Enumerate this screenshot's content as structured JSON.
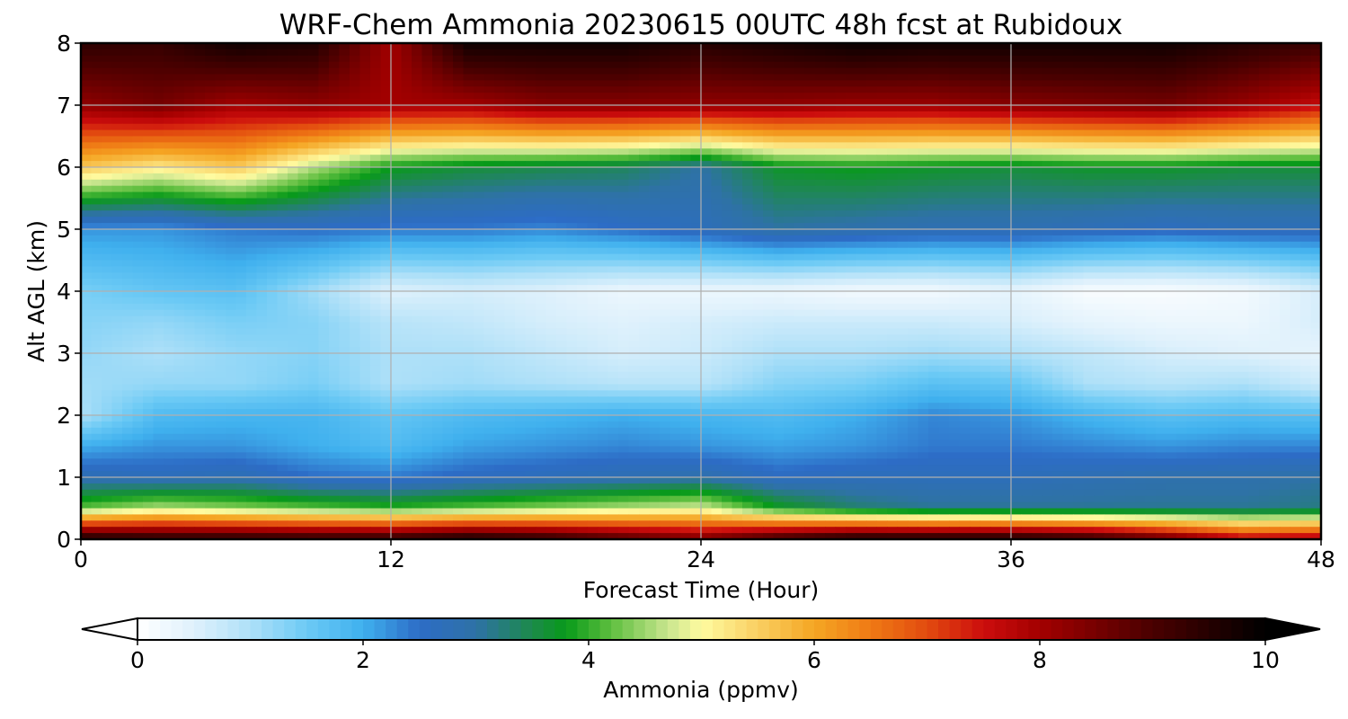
{
  "chart_data": {
    "type": "heatmap",
    "title": "WRF-Chem Ammonia  20230615 00UTC 48h fcst at Rubidoux",
    "xlabel": "Forecast Time (Hour)",
    "ylabel": "Alt AGL (km)",
    "xlim": [
      0,
      48
    ],
    "ylim": [
      0,
      8
    ],
    "x_ticks": [
      "0",
      "12",
      "24",
      "36",
      "48"
    ],
    "y_ticks": [
      "0",
      "1",
      "2",
      "3",
      "4",
      "5",
      "6",
      "7",
      "8"
    ],
    "grid": true,
    "colorbar": {
      "label": "Ammonia  (ppmv)",
      "range": [
        0,
        10
      ],
      "ticks": [
        "0",
        "2",
        "4",
        "6",
        "8",
        "10"
      ],
      "extend": "both",
      "stops": [
        {
          "v": 0.0,
          "c": "#ffffff"
        },
        {
          "v": 0.5,
          "c": "#dff1fc"
        },
        {
          "v": 1.0,
          "c": "#aee0f8"
        },
        {
          "v": 1.5,
          "c": "#6ccaf5"
        },
        {
          "v": 2.0,
          "c": "#3fb0ee"
        },
        {
          "v": 2.5,
          "c": "#2d6cc6"
        },
        {
          "v": 3.0,
          "c": "#2e72a6"
        },
        {
          "v": 3.5,
          "c": "#1c8a4a"
        },
        {
          "v": 3.8,
          "c": "#089a1a"
        },
        {
          "v": 4.2,
          "c": "#5fbf3f"
        },
        {
          "v": 4.7,
          "c": "#c8e58e"
        },
        {
          "v": 5.0,
          "c": "#fffba0"
        },
        {
          "v": 5.5,
          "c": "#f9cf62"
        },
        {
          "v": 6.0,
          "c": "#f5a623"
        },
        {
          "v": 6.5,
          "c": "#ef7a15"
        },
        {
          "v": 7.0,
          "c": "#e24b0f"
        },
        {
          "v": 7.5,
          "c": "#cc0d0d"
        },
        {
          "v": 8.0,
          "c": "#a30000"
        },
        {
          "v": 9.0,
          "c": "#4a0000"
        },
        {
          "v": 10.0,
          "c": "#000000"
        }
      ]
    },
    "grid_times_h": [
      0,
      3,
      6,
      9,
      12,
      15,
      18,
      21,
      24,
      27,
      30,
      33,
      36,
      39,
      42,
      45,
      48
    ],
    "grid_alts_km": [
      0,
      0.5,
      1.0,
      1.5,
      2.0,
      2.5,
      3.0,
      3.5,
      4.0,
      5.0,
      6.0,
      7.0,
      8.0
    ],
    "values_ppmv": [
      [
        9.8,
        9.6,
        9.6,
        9.5,
        9.5,
        9.8,
        9.5,
        9.0,
        8.5,
        9.3,
        9.8,
        9.8,
        9.8,
        9.5,
        8.8,
        7.8,
        8.0
      ],
      [
        4.2,
        4.6,
        4.4,
        4.2,
        4.0,
        4.2,
        4.4,
        4.6,
        4.8,
        3.8,
        3.3,
        3.1,
        3.1,
        3.1,
        3.1,
        3.1,
        3.2
      ],
      [
        2.8,
        2.7,
        2.8,
        2.5,
        2.4,
        2.6,
        2.7,
        2.8,
        2.9,
        2.6,
        2.7,
        2.7,
        2.7,
        2.8,
        2.9,
        2.9,
        3.0
      ],
      [
        2.0,
        2.2,
        2.2,
        2.0,
        1.8,
        2.1,
        2.2,
        2.3,
        2.2,
        2.1,
        2.2,
        2.4,
        2.4,
        2.3,
        2.2,
        2.3,
        2.3
      ],
      [
        1.0,
        1.8,
        1.9,
        1.9,
        1.6,
        1.8,
        1.9,
        2.0,
        1.9,
        1.8,
        2.0,
        2.3,
        2.2,
        1.9,
        1.7,
        1.8,
        1.7
      ],
      [
        1.1,
        1.2,
        1.2,
        1.4,
        1.0,
        1.1,
        1.0,
        0.9,
        0.9,
        1.3,
        1.4,
        1.7,
        1.6,
        1.0,
        0.9,
        1.0,
        0.7
      ],
      [
        1.2,
        1.0,
        1.2,
        1.3,
        1.0,
        1.0,
        0.8,
        0.6,
        0.7,
        1.0,
        1.0,
        1.1,
        1.0,
        0.8,
        0.6,
        0.5,
        0.4
      ],
      [
        1.3,
        1.2,
        1.4,
        1.3,
        0.9,
        0.8,
        0.6,
        0.5,
        0.6,
        0.7,
        0.7,
        0.7,
        0.6,
        0.4,
        0.3,
        0.3,
        0.6
      ],
      [
        1.4,
        1.6,
        1.7,
        1.1,
        0.5,
        0.6,
        0.5,
        0.3,
        0.3,
        0.3,
        0.2,
        0.2,
        0.4,
        0.1,
        0.1,
        0.2,
        0.6
      ],
      [
        2.2,
        2.2,
        2.4,
        2.5,
        2.4,
        2.4,
        2.3,
        2.5,
        2.7,
        3.0,
        2.9,
        2.8,
        2.8,
        2.7,
        2.6,
        2.7,
        2.7
      ],
      [
        5.6,
        5.2,
        5.6,
        4.6,
        3.8,
        3.6,
        3.5,
        3.4,
        3.0,
        3.7,
        3.8,
        3.7,
        3.6,
        3.7,
        3.7,
        3.6,
        3.6
      ],
      [
        8.2,
        8.5,
        8.0,
        8.2,
        8.0,
        8.0,
        8.3,
        8.3,
        8.2,
        8.2,
        8.1,
        8.1,
        8.3,
        8.4,
        8.5,
        8.1,
        7.6
      ],
      [
        9.4,
        9.3,
        9.8,
        9.6,
        8.0,
        9.8,
        9.8,
        9.8,
        9.5,
        9.7,
        9.9,
        9.8,
        9.8,
        9.8,
        9.8,
        9.5,
        9.2
      ]
    ]
  }
}
